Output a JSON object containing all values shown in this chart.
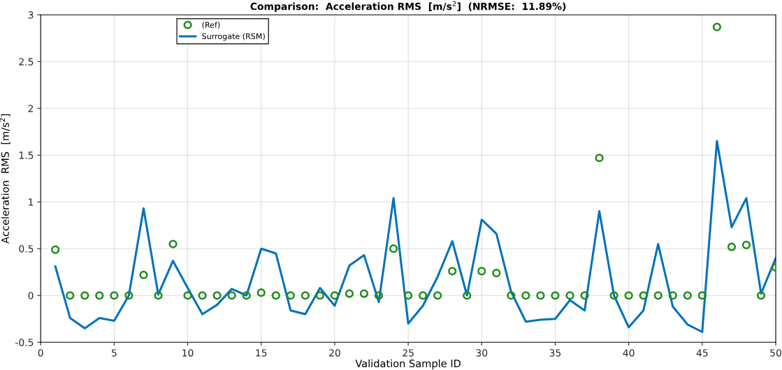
{
  "chart_data": {
    "type": "line",
    "title": "Comparison:  Acceleration RMS  [m/s$^{2}$]  (NRMSE:  11.89%)",
    "xlabel": "Validation Sample ID",
    "ylabel": "Acceleration  RMS  [m/s$^{2}$]",
    "x": [
      1,
      2,
      3,
      4,
      5,
      6,
      7,
      8,
      9,
      10,
      11,
      12,
      13,
      14,
      15,
      16,
      17,
      18,
      19,
      20,
      21,
      22,
      23,
      24,
      25,
      26,
      27,
      28,
      29,
      30,
      31,
      32,
      33,
      34,
      35,
      36,
      37,
      38,
      39,
      40,
      41,
      42,
      43,
      44,
      45,
      46,
      47,
      48,
      49,
      50
    ],
    "series": [
      {
        "name": "(Ref)",
        "type": "scatter",
        "marker": "circle",
        "color": "#1f8c1f",
        "values": [
          0.49,
          0,
          0,
          0,
          0,
          0,
          0.22,
          0,
          0.55,
          0,
          0,
          0,
          0,
          0,
          0.03,
          0,
          0,
          0,
          0,
          0,
          0.02,
          0.02,
          0,
          0.5,
          0,
          0,
          0,
          0.26,
          0,
          0.26,
          0.24,
          0,
          0,
          0,
          0,
          0,
          0,
          1.47,
          0,
          0,
          0,
          0,
          0,
          0,
          0,
          2.87,
          0.52,
          0.54,
          0,
          0.3
        ]
      },
      {
        "name": "Surrogate (RSM)",
        "line_style": "solid",
        "color": "#0072bd",
        "values": [
          0.31,
          -0.24,
          -0.35,
          -0.24,
          -0.27,
          0,
          0.93,
          0.01,
          0.37,
          0.08,
          -0.2,
          -0.1,
          0.07,
          0,
          0.5,
          0.45,
          -0.16,
          -0.2,
          0.08,
          -0.11,
          0.32,
          0.43,
          -0.07,
          1.04,
          -0.3,
          -0.11,
          0.2,
          0.58,
          0,
          0.81,
          0.66,
          0.04,
          -0.28,
          -0.26,
          -0.25,
          -0.05,
          -0.16,
          0.9,
          0,
          -0.34,
          -0.16,
          0.55,
          -0.12,
          -0.31,
          -0.39,
          1.65,
          0.73,
          1.04,
          0.02,
          0.4
        ]
      }
    ],
    "xlim": [
      0,
      50
    ],
    "xticks": [
      0,
      5,
      10,
      15,
      20,
      25,
      30,
      35,
      40,
      45,
      50
    ],
    "ylim": [
      -0.5,
      3
    ],
    "yticks": [
      -0.5,
      0,
      0.5,
      1,
      1.5,
      2,
      2.5,
      3
    ],
    "grid": true,
    "legend": "top left"
  }
}
